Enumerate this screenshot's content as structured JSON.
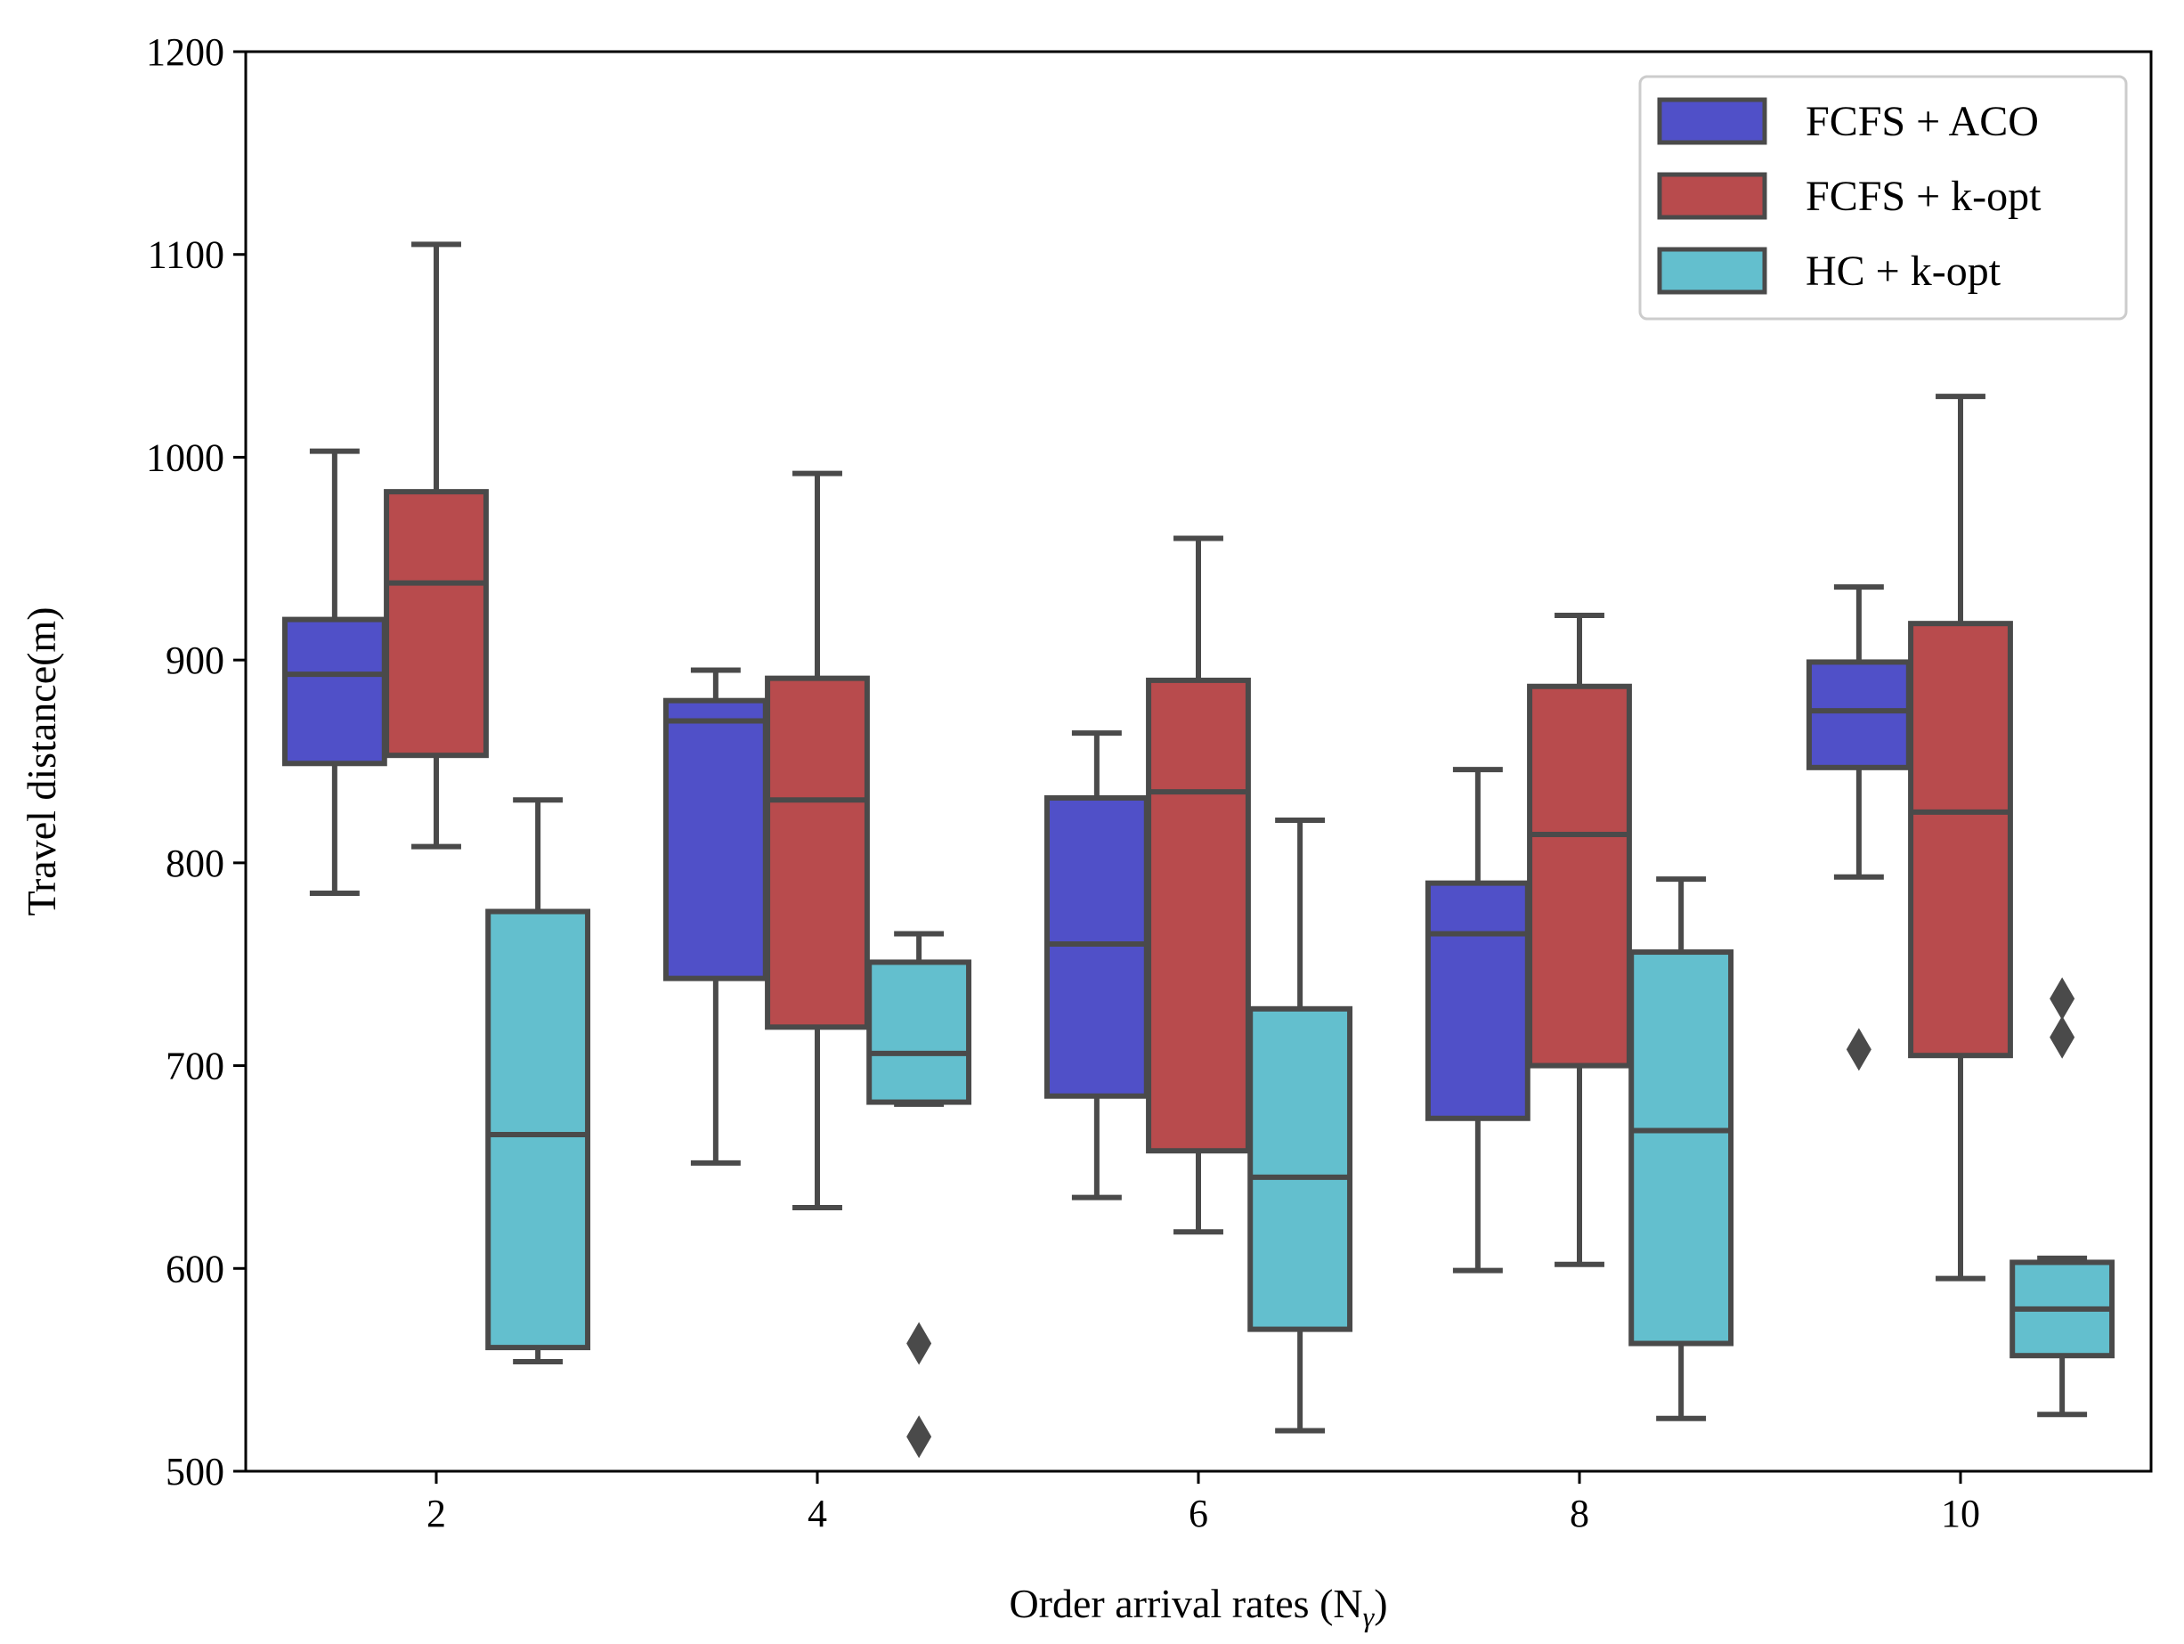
{
  "chart_data": {
    "type": "box",
    "xlabel": "Order arrival rates (N",
    "xlabel_sub": "γ",
    "xlabel_close": ")",
    "ylabel": "Travel distance(m)",
    "ylim": [
      500,
      1200
    ],
    "yticks": [
      "500",
      "600",
      "700",
      "800",
      "900",
      "1000",
      "1100",
      "1200"
    ],
    "categories": [
      "2",
      "4",
      "6",
      "8",
      "10"
    ],
    "legend_position": "top-right",
    "grid": false,
    "series": [
      {
        "name": "FCFS + ACO",
        "color": "#5050c8",
        "boxes": [
          {
            "whisker_low": 785,
            "q1": 849,
            "median": 893,
            "q3": 920,
            "whisker_high": 1003,
            "outliers": []
          },
          {
            "whisker_low": 652,
            "q1": 743,
            "median": 870,
            "q3": 880,
            "whisker_high": 895,
            "outliers": []
          },
          {
            "whisker_low": 635,
            "q1": 685,
            "median": 760,
            "q3": 832,
            "whisker_high": 864,
            "outliers": []
          },
          {
            "whisker_low": 599,
            "q1": 674,
            "median": 765,
            "q3": 790,
            "whisker_high": 846,
            "outliers": []
          },
          {
            "whisker_low": 793,
            "q1": 847,
            "median": 875,
            "q3": 899,
            "whisker_high": 936,
            "outliers": [
              708
            ]
          }
        ]
      },
      {
        "name": "FCFS + k-opt",
        "color": "#b84b4d",
        "boxes": [
          {
            "whisker_low": 808,
            "q1": 853,
            "median": 938,
            "q3": 983,
            "whisker_high": 1105,
            "outliers": []
          },
          {
            "whisker_low": 630,
            "q1": 719,
            "median": 831,
            "q3": 891,
            "whisker_high": 992,
            "outliers": []
          },
          {
            "whisker_low": 618,
            "q1": 658,
            "median": 835,
            "q3": 890,
            "whisker_high": 960,
            "outliers": []
          },
          {
            "whisker_low": 602,
            "q1": 700,
            "median": 814,
            "q3": 887,
            "whisker_high": 922,
            "outliers": []
          },
          {
            "whisker_low": 595,
            "q1": 705,
            "median": 825,
            "q3": 918,
            "whisker_high": 1030,
            "outliers": []
          }
        ]
      },
      {
        "name": "HC + k-opt",
        "color": "#63bfce",
        "boxes": [
          {
            "whisker_low": 554,
            "q1": 561,
            "median": 666,
            "q3": 776,
            "whisker_high": 831,
            "outliers": []
          },
          {
            "whisker_low": 681,
            "q1": 682,
            "median": 706,
            "q3": 751,
            "whisker_high": 765,
            "outliers": [
              563,
              517
            ]
          },
          {
            "whisker_low": 520,
            "q1": 570,
            "median": 645,
            "q3": 728,
            "whisker_high": 821,
            "outliers": []
          },
          {
            "whisker_low": 526,
            "q1": 563,
            "median": 668,
            "q3": 756,
            "whisker_high": 792,
            "outliers": []
          },
          {
            "whisker_low": 528,
            "q1": 557,
            "median": 580,
            "q3": 603,
            "whisker_high": 605,
            "outliers": [
              733,
              714
            ]
          }
        ]
      }
    ]
  }
}
